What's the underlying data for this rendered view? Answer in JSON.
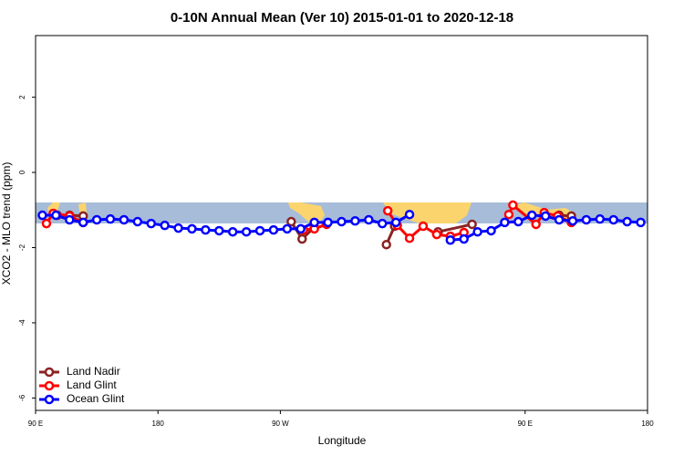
{
  "chart_data": {
    "type": "line",
    "title": "0-10N Annual Mean (Ver 10)   2015-01-01 to 2020-12-18",
    "x_label": "Longitude",
    "y_label": "XCO2 - MLO trend (ppm)",
    "xlim": [
      90,
      540
    ],
    "ylim": [
      -6.33,
      3.64
    ],
    "xticks": [
      {
        "value": 90,
        "label": "90 E"
      },
      180,
      {
        "value": 270,
        "label": "90 W"
      },
      {
        "value": 450,
        "label": "90 E"
      },
      {
        "value": 540,
        "label": "180"
      }
    ],
    "yticks": [
      2,
      0,
      -2,
      -4,
      -6
    ],
    "legend": "bottom-left",
    "series": [
      {
        "name": "Land Nadir",
        "color": "#8b2323",
        "x": [
          106,
          115,
          125,
          200,
          278,
          286,
          295,
          320,
          348,
          354,
          370,
          386,
          411,
          440,
          475,
          484
        ],
        "values": [
          -1.14,
          -1.14,
          -1.16,
          null,
          -1.31,
          -1.77,
          -1.46,
          null,
          -1.92,
          -1.43,
          null,
          -1.58,
          -1.38,
          null,
          -1.14,
          -1.16
        ]
      },
      {
        "name": "Land Glint",
        "color": "#ff0000",
        "x": [
          98,
          103,
          115,
          125,
          200,
          287,
          295,
          304,
          330,
          349,
          356,
          365,
          375,
          385,
          395,
          405,
          420,
          438,
          441,
          458,
          464,
          474,
          484
        ],
        "values": [
          -1.36,
          -1.09,
          -1.16,
          -1.33,
          null,
          -1.53,
          -1.5,
          -1.38,
          null,
          -1.02,
          -1.41,
          -1.75,
          -1.43,
          -1.65,
          -1.7,
          -1.6,
          null,
          -1.12,
          -0.87,
          -1.38,
          -1.07,
          -1.16,
          -1.33
        ]
      },
      {
        "name": "Ocean Glint",
        "color": "#0000ff",
        "x": [
          95,
          105,
          115,
          125,
          135,
          145,
          155,
          165,
          175,
          185,
          195,
          205,
          215,
          225,
          235,
          245,
          255,
          265,
          275,
          285,
          295,
          305,
          315,
          325,
          335,
          345,
          355,
          365,
          380,
          395,
          405,
          415,
          425,
          435,
          445,
          455,
          465,
          475,
          485,
          495,
          505,
          515,
          525,
          535
        ],
        "values": [
          -1.14,
          -1.14,
          -1.26,
          -1.33,
          -1.26,
          -1.24,
          -1.26,
          -1.31,
          -1.36,
          -1.41,
          -1.48,
          -1.5,
          -1.53,
          -1.55,
          -1.58,
          -1.58,
          -1.55,
          -1.53,
          -1.5,
          -1.5,
          -1.33,
          -1.33,
          -1.31,
          -1.29,
          -1.26,
          -1.36,
          -1.33,
          -1.12,
          null,
          -1.8,
          -1.77,
          -1.58,
          -1.55,
          -1.33,
          -1.31,
          -1.14,
          -1.16,
          -1.26,
          -1.29,
          -1.26,
          -1.24,
          -1.26,
          -1.31,
          -1.33
        ]
      }
    ]
  }
}
